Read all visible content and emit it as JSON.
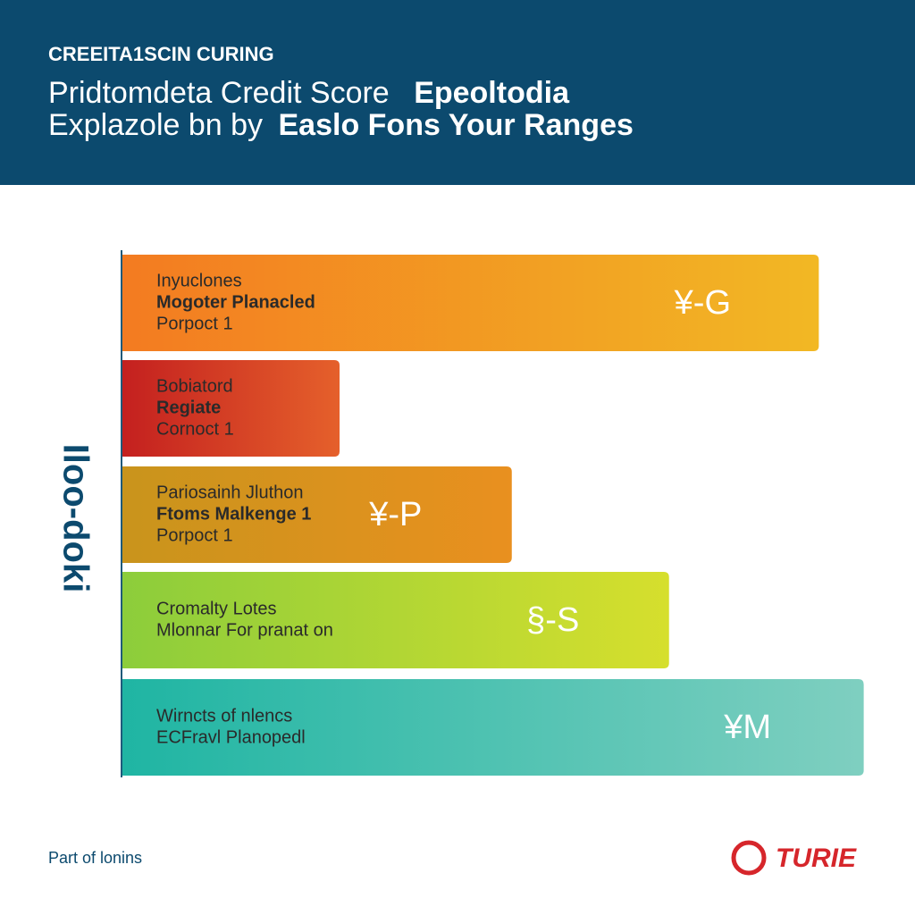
{
  "chart_data": {
    "type": "bar",
    "orientation": "horizontal",
    "kicker": "CREEITA1SCIN CURING",
    "title": [
      "Pridtomdeta Credit Score",
      "Epeoltodia"
    ],
    "subtitle": [
      "Explazole bn by",
      "Easlo Fons Your Ranges"
    ],
    "y_label": "Iloo-doki",
    "categories": [
      [
        "Inyuclones",
        "Mogoter Planacled",
        "Porpoct 1"
      ],
      [
        "Bobiatord",
        "Regiate",
        "Cornoct 1"
      ],
      [
        "Pariosainh Jluthon",
        "Ftoms Malkenge 1",
        "Porpoct 1"
      ],
      [
        "Cromalty Lotes",
        "Mlonnar For pranat on"
      ],
      [
        "Wirncts of nlencs",
        "ECFravl Planopedl"
      ]
    ],
    "values": [
      93,
      29,
      52,
      73,
      99
    ],
    "value_labels": [
      "¥-G",
      null,
      "¥-P",
      "§-S",
      "¥M"
    ],
    "colors": [
      [
        "#f37b21",
        "#f2b824"
      ],
      [
        "#c4201f",
        "#e5602b"
      ],
      [
        "#c9941c",
        "#e9901f"
      ],
      [
        "#8ccd3b",
        "#d6df2d"
      ],
      [
        "#1fb5a3",
        "#7fcfc0"
      ]
    ],
    "xlim": [
      0,
      100
    ],
    "footer": "Part of lonins",
    "logo": "TURIE"
  }
}
